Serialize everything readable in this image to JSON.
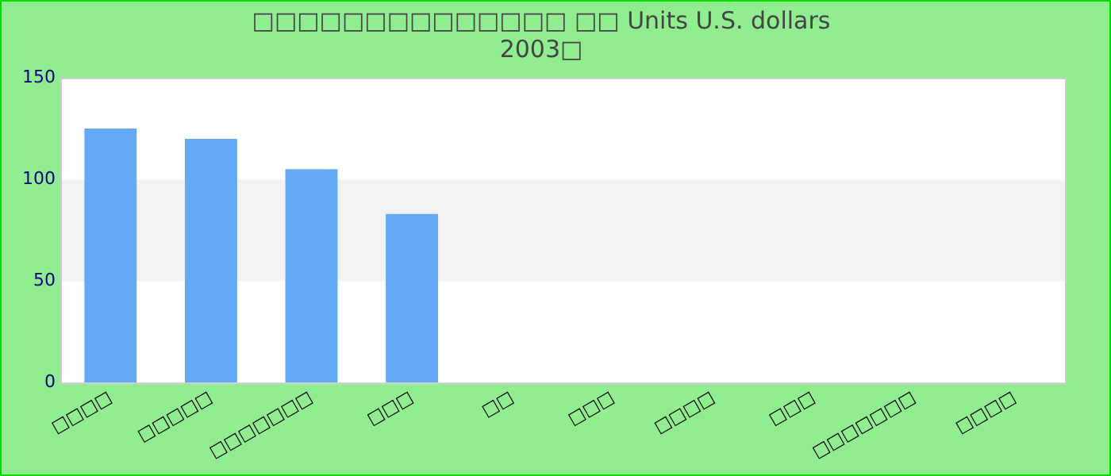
{
  "chart_data": {
    "type": "bar",
    "title": "□□□□□□□□□□□□□□ □□ Units U.S. dollars",
    "subtitle": "2003□",
    "categories": [
      "□□□□",
      "□□□□□",
      "□□□□□□□",
      "□□□",
      "□□",
      "□□□",
      "□□□□",
      "□□□",
      "□□□□□□□",
      "□□□□"
    ],
    "values": [
      125,
      120,
      105,
      83,
      null,
      null,
      null,
      null,
      null,
      null
    ],
    "color": "#63a9f5",
    "ylim": [
      0,
      150
    ],
    "yticks": [
      0,
      50,
      100,
      150
    ],
    "grid": false,
    "bands": [
      {
        "axis": "y",
        "from": 50,
        "to": 100,
        "label": null,
        "color": "#f2f2f2"
      }
    ]
  }
}
